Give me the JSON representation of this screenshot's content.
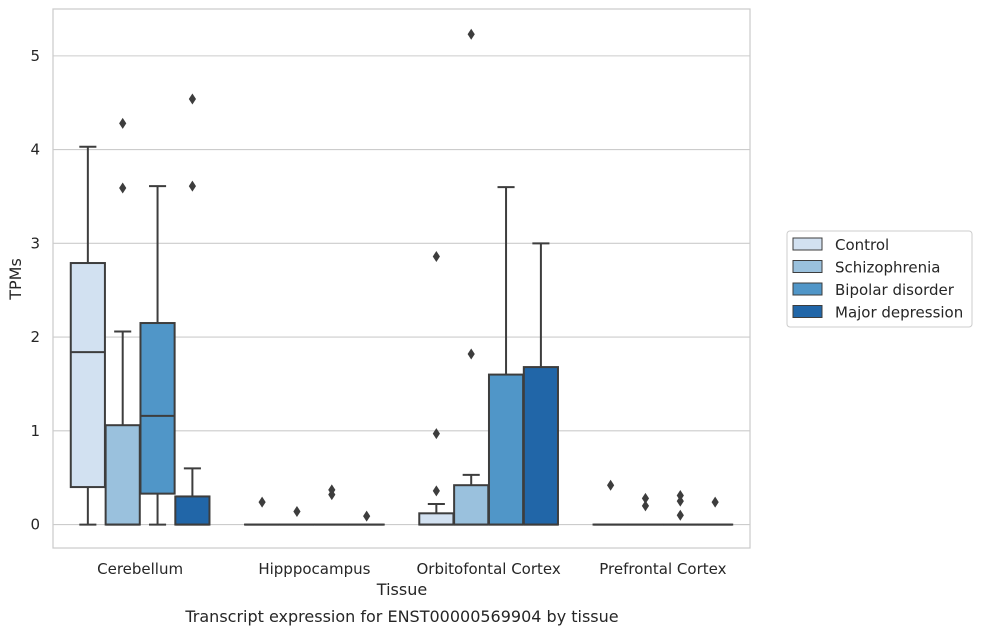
{
  "chart_data": {
    "type": "box",
    "title": "",
    "caption": "Transcript expression for ENST00000569904 by tissue",
    "xlabel": "Tissue",
    "ylabel": "TPMs",
    "ylim": [
      -0.25,
      5.5
    ],
    "yticks": [
      0,
      1,
      2,
      3,
      4,
      5
    ],
    "grid": "horizontal",
    "legend_position": "right",
    "categories": [
      "Cerebellum",
      "Hipppocampus",
      "Orbitofontal Cortex",
      "Prefrontal Cortex"
    ],
    "series": [
      {
        "name": "Control",
        "color": "#d2e1f1",
        "boxes": [
          {
            "whislo": 0.0,
            "q1": 0.4,
            "med": 1.84,
            "q3": 2.79,
            "whishi": 4.03,
            "fliers": []
          },
          {
            "whislo": 0.0,
            "q1": 0.0,
            "med": 0.0,
            "q3": 0.0,
            "whishi": 0.0,
            "fliers": [
              0.24
            ]
          },
          {
            "whislo": 0.0,
            "q1": 0.0,
            "med": 0.0,
            "q3": 0.12,
            "whishi": 0.22,
            "fliers": [
              0.36,
              0.97,
              2.86
            ]
          },
          {
            "whislo": 0.0,
            "q1": 0.0,
            "med": 0.0,
            "q3": 0.0,
            "whishi": 0.0,
            "fliers": [
              0.42
            ]
          }
        ]
      },
      {
        "name": "Schizophrenia",
        "color": "#9ac1dd",
        "boxes": [
          {
            "whislo": 0.0,
            "q1": 0.0,
            "med": 0.0,
            "q3": 1.06,
            "whishi": 2.06,
            "fliers": [
              3.59,
              4.28
            ]
          },
          {
            "whislo": 0.0,
            "q1": 0.0,
            "med": 0.0,
            "q3": 0.0,
            "whishi": 0.0,
            "fliers": [
              0.14
            ]
          },
          {
            "whislo": 0.0,
            "q1": 0.0,
            "med": 0.0,
            "q3": 0.42,
            "whishi": 0.53,
            "fliers": [
              1.82,
              5.23
            ]
          },
          {
            "whislo": 0.0,
            "q1": 0.0,
            "med": 0.0,
            "q3": 0.0,
            "whishi": 0.0,
            "fliers": [
              0.2,
              0.28
            ]
          }
        ]
      },
      {
        "name": "Bipolar disorder",
        "color": "#5096c8",
        "boxes": [
          {
            "whislo": 0.0,
            "q1": 0.33,
            "med": 1.16,
            "q3": 2.15,
            "whishi": 3.61,
            "fliers": []
          },
          {
            "whislo": 0.0,
            "q1": 0.0,
            "med": 0.0,
            "q3": 0.0,
            "whishi": 0.0,
            "fliers": [
              0.32,
              0.37
            ]
          },
          {
            "whislo": 0.0,
            "q1": 0.0,
            "med": 0.0,
            "q3": 1.6,
            "whishi": 3.6,
            "fliers": []
          },
          {
            "whislo": 0.0,
            "q1": 0.0,
            "med": 0.0,
            "q3": 0.0,
            "whishi": 0.0,
            "fliers": [
              0.1,
              0.25,
              0.31
            ]
          }
        ]
      },
      {
        "name": "Major depression",
        "color": "#2166a8",
        "boxes": [
          {
            "whislo": 0.0,
            "q1": 0.0,
            "med": 0.0,
            "q3": 0.3,
            "whishi": 0.6,
            "fliers": [
              3.61,
              4.54
            ]
          },
          {
            "whislo": 0.0,
            "q1": 0.0,
            "med": 0.0,
            "q3": 0.0,
            "whishi": 0.0,
            "fliers": [
              0.09
            ]
          },
          {
            "whislo": 0.0,
            "q1": 0.0,
            "med": 0.0,
            "q3": 1.68,
            "whishi": 3.0,
            "fliers": []
          },
          {
            "whislo": 0.0,
            "q1": 0.0,
            "med": 0.0,
            "q3": 0.0,
            "whishi": 0.0,
            "fliers": [
              0.24
            ]
          }
        ]
      }
    ]
  }
}
